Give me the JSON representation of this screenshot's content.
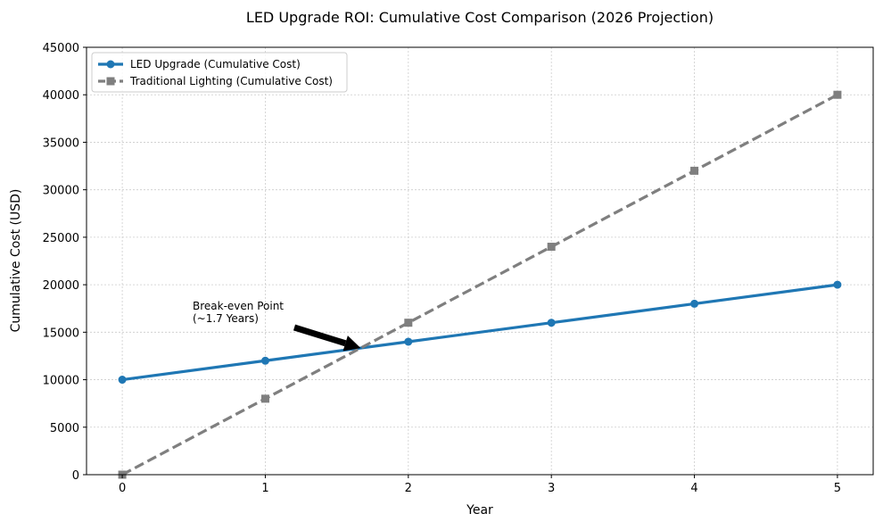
{
  "chart_data": {
    "type": "line",
    "title": "LED Upgrade ROI: Cumulative Cost Comparison (2026 Projection)",
    "xlabel": "Year",
    "ylabel": "Cumulative Cost (USD)",
    "x": [
      0,
      1,
      2,
      3,
      4,
      5
    ],
    "xlim": [
      -0.25,
      5.25
    ],
    "ylim": [
      0,
      45000
    ],
    "xticks": [
      "0",
      "1",
      "2",
      "3",
      "4",
      "5"
    ],
    "yticks": [
      "0",
      "5000",
      "10000",
      "15000",
      "20000",
      "25000",
      "30000",
      "35000",
      "40000",
      "45000"
    ],
    "grid": true,
    "legend_position": "top-left",
    "series": [
      {
        "name": "LED Upgrade (Cumulative Cost)",
        "values": [
          10000,
          12000,
          14000,
          16000,
          18000,
          20000
        ],
        "color": "#1f77b4",
        "style": "solid",
        "marker": "circle"
      },
      {
        "name": "Traditional Lighting (Cumulative Cost)",
        "values": [
          0,
          8000,
          16000,
          24000,
          32000,
          40000
        ],
        "color": "#7f7f7f",
        "style": "dashed",
        "marker": "square"
      }
    ],
    "annotation": {
      "line1": "Break-even Point",
      "line2": "(~1.7 Years)",
      "point": [
        1.667,
        13333
      ],
      "text_at": [
        0.5,
        16000
      ]
    }
  }
}
